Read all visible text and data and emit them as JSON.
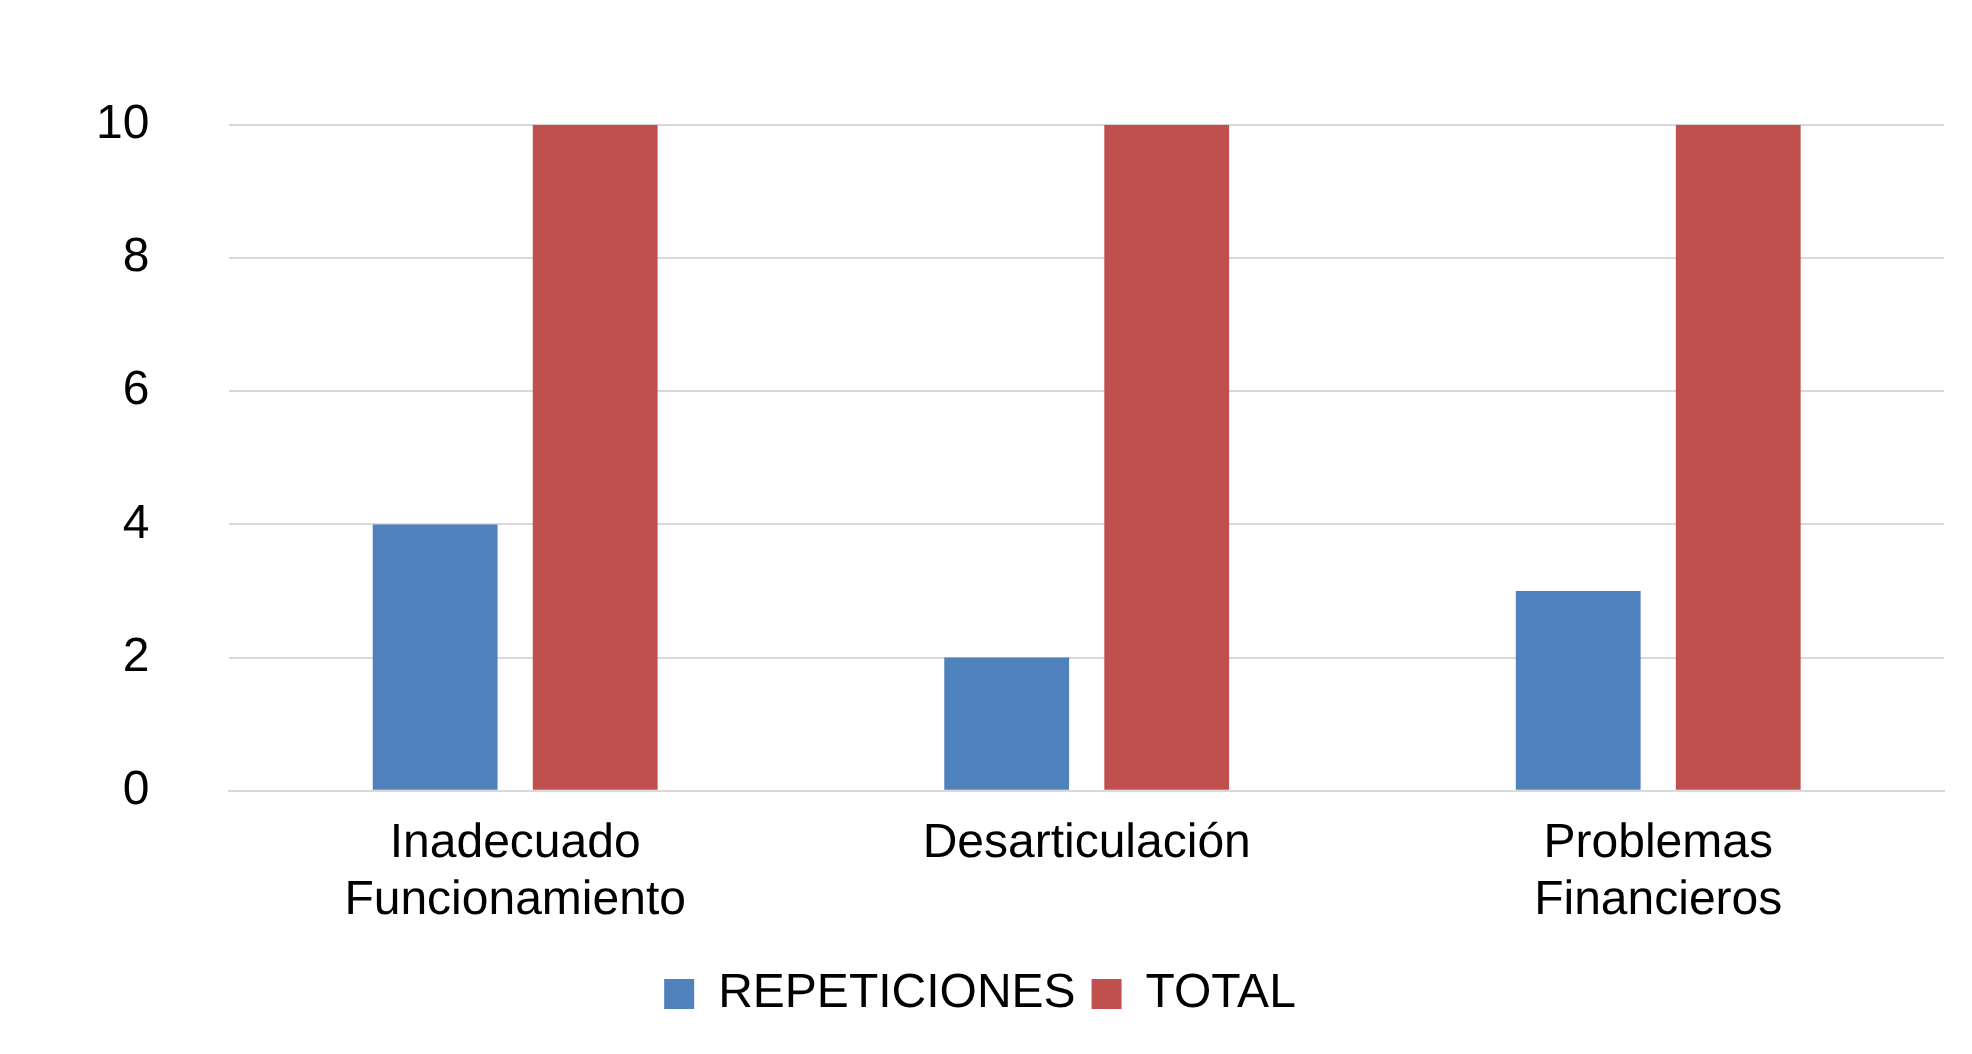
{
  "chart_data": {
    "type": "bar",
    "categories": [
      "Inadecuado Funcionamiento",
      "Desarticulación",
      "Problemas Financieros"
    ],
    "series": [
      {
        "name": "REPETICIONES",
        "color": "#4f81bd",
        "values": [
          4,
          2,
          3
        ]
      },
      {
        "name": "TOTAL",
        "color": "#c0504d",
        "values": [
          10,
          10,
          10
        ]
      }
    ],
    "ylim": [
      0,
      10
    ],
    "yticks": [
      0,
      2,
      4,
      6,
      8,
      10
    ],
    "grid": "y",
    "legend": "bottom"
  }
}
